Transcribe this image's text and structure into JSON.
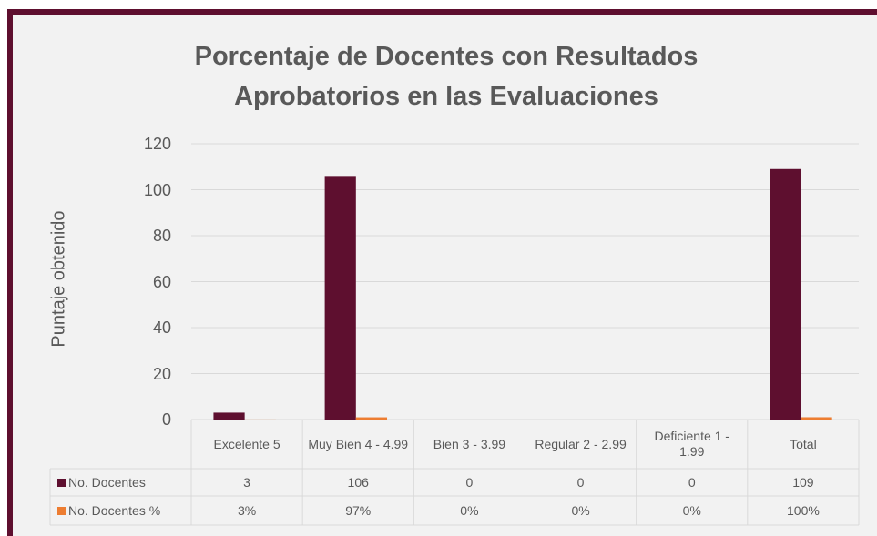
{
  "chart_data": {
    "type": "bar",
    "title": "Porcentaje de Docentes con Resultados Aprobatorios en las Evaluaciones",
    "y_label": "Puntaje obtenido",
    "categories": [
      "Excelente 5",
      "Muy Bien 4 - 4.99",
      "Bien 3 - 3.99",
      "Regular 2 - 2.99",
      "Deficiente 1 - 1.99",
      "Total"
    ],
    "series": [
      {
        "name": "No. Docentes",
        "color": "#5e0f2f",
        "values": [
          3,
          106,
          0,
          0,
          0,
          109
        ]
      },
      {
        "name": "No. Docentes %",
        "color": "#ed7d31",
        "values": [
          0.03,
          0.97,
          0,
          0,
          0,
          1
        ],
        "value_labels": [
          "3%",
          "97%",
          "0%",
          "0%",
          "0%",
          "100%"
        ]
      }
    ],
    "ylim": [
      0,
      120
    ],
    "yticks": [
      0,
      20,
      40,
      60,
      80,
      100,
      120
    ],
    "grid": true,
    "data_table": true
  }
}
